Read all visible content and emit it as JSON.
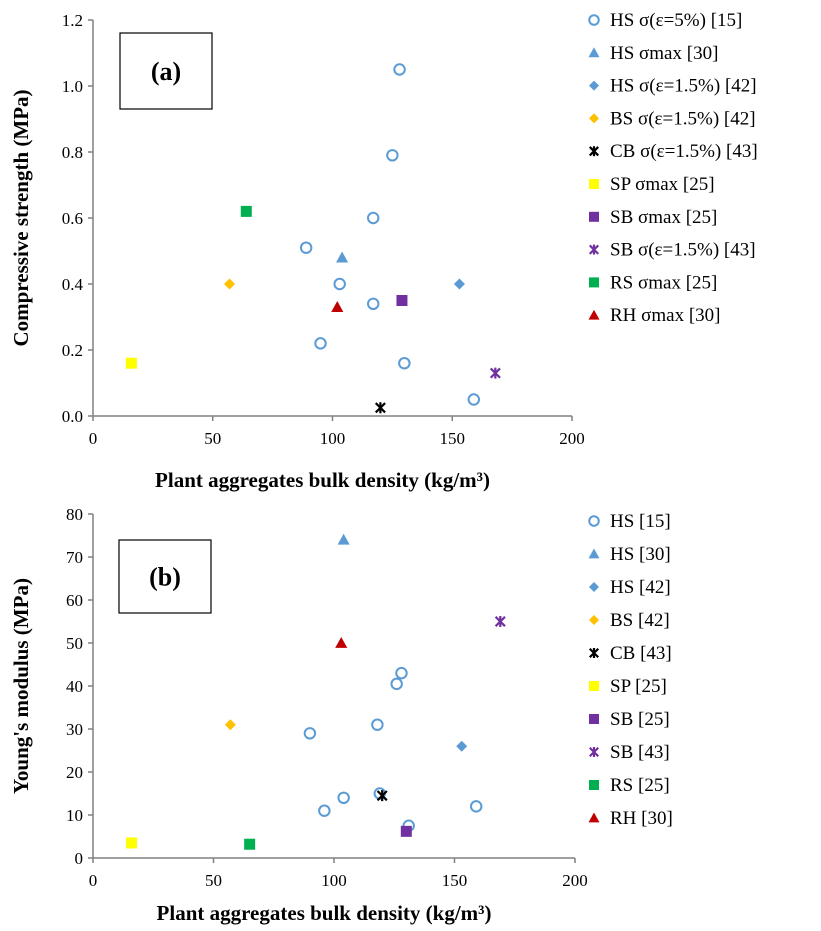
{
  "chart_data": [
    {
      "type": "scatter",
      "panel_label": "(a)",
      "xlabel": "Plant aggregates bulk density (kg/m³)",
      "ylabel": "Compressive strength (MPa)",
      "xlim": [
        0,
        200
      ],
      "ylim": [
        0,
        1.2
      ],
      "x_ticks": [
        "0",
        "50",
        "100",
        "150",
        "200"
      ],
      "y_ticks": [
        "0.0",
        "0.2",
        "0.4",
        "0.6",
        "0.8",
        "1.0",
        "1.2"
      ],
      "grid": false,
      "legend_position": "right",
      "series": [
        {
          "name": "HS  σ(ε=5%) [15]",
          "marker": "circle-open",
          "color": "#5B9BD5",
          "points": [
            [
              89,
              0.51
            ],
            [
              95,
              0.22
            ],
            [
              103,
              0.4
            ],
            [
              117,
              0.6
            ],
            [
              117,
              0.34
            ],
            [
              125,
              0.79
            ],
            [
              128,
              1.05
            ],
            [
              130,
              0.16
            ],
            [
              159,
              0.05
            ]
          ]
        },
        {
          "name": "HS σmax [30]",
          "marker": "triangle",
          "color": "#5B9BD5",
          "points": [
            [
              104,
              0.48
            ]
          ]
        },
        {
          "name": "HS σ(ε=1.5%) [42]",
          "marker": "diamond",
          "color": "#5B9BD5",
          "points": [
            [
              153,
              0.4
            ]
          ]
        },
        {
          "name": "BS  σ(ε=1.5%)  [42]",
          "marker": "diamond",
          "color": "#FFC000",
          "points": [
            [
              57,
              0.4
            ]
          ]
        },
        {
          "name": "CB σ(ε=1.5%) [43]",
          "marker": "asterisk",
          "color": "#000000",
          "points": [
            [
              120,
              0.025
            ]
          ]
        },
        {
          "name": "SP σmax [25]",
          "marker": "square",
          "color": "#FFFF00",
          "points": [
            [
              16,
              0.16
            ]
          ]
        },
        {
          "name": "SB σmax [25]",
          "marker": "square",
          "color": "#7030A0",
          "points": [
            [
              129,
              0.35
            ]
          ]
        },
        {
          "name": "SB  σ(ε=1.5%) [43]",
          "marker": "asterisk",
          "color": "#7030A0",
          "points": [
            [
              168,
              0.13
            ]
          ]
        },
        {
          "name": "RS σmax [25]",
          "marker": "square",
          "color": "#00B050",
          "points": [
            [
              64,
              0.62
            ]
          ]
        },
        {
          "name": "RH σmax [30]",
          "marker": "triangle",
          "color": "#C00000",
          "points": [
            [
              102,
              0.33
            ]
          ]
        }
      ]
    },
    {
      "type": "scatter",
      "panel_label": "(b)",
      "xlabel": "Plant aggregates bulk density (kg/m³)",
      "ylabel": "Young's modulus (MPa)",
      "xlim": [
        0,
        200
      ],
      "ylim": [
        0,
        80
      ],
      "x_ticks": [
        "0",
        "50",
        "100",
        "150",
        "200"
      ],
      "y_ticks": [
        "0",
        "10",
        "20",
        "30",
        "40",
        "50",
        "60",
        "70",
        "80"
      ],
      "grid": false,
      "legend_position": "right",
      "series": [
        {
          "name": "HS [15]",
          "marker": "circle-open",
          "color": "#5B9BD5",
          "points": [
            [
              90,
              29
            ],
            [
              96,
              11
            ],
            [
              104,
              14
            ],
            [
              118,
              31
            ],
            [
              119,
              15
            ],
            [
              126,
              40.5
            ],
            [
              128,
              43
            ],
            [
              131,
              7.5
            ],
            [
              159,
              12
            ]
          ]
        },
        {
          "name": "HS [30]",
          "marker": "triangle",
          "color": "#5B9BD5",
          "points": [
            [
              104,
              74
            ]
          ]
        },
        {
          "name": "HS [42]",
          "marker": "diamond",
          "color": "#5B9BD5",
          "points": [
            [
              153,
              26
            ]
          ]
        },
        {
          "name": "BS  [42]",
          "marker": "diamond",
          "color": "#FFC000",
          "points": [
            [
              57,
              31
            ]
          ]
        },
        {
          "name": "CB [43]",
          "marker": "asterisk",
          "color": "#000000",
          "points": [
            [
              120,
              14.5
            ]
          ]
        },
        {
          "name": "SP [25]",
          "marker": "square",
          "color": "#FFFF00",
          "points": [
            [
              16,
              3.5
            ]
          ]
        },
        {
          "name": "SB [25]",
          "marker": "square",
          "color": "#7030A0",
          "points": [
            [
              130,
              6.2
            ]
          ]
        },
        {
          "name": "SB [43]",
          "marker": "asterisk",
          "color": "#7030A0",
          "points": [
            [
              169,
              55
            ]
          ]
        },
        {
          "name": "RS [25]",
          "marker": "square",
          "color": "#00B050",
          "points": [
            [
              65,
              3.2
            ]
          ]
        },
        {
          "name": "RH [30]",
          "marker": "triangle",
          "color": "#C00000",
          "points": [
            [
              103,
              50
            ]
          ]
        }
      ]
    }
  ]
}
